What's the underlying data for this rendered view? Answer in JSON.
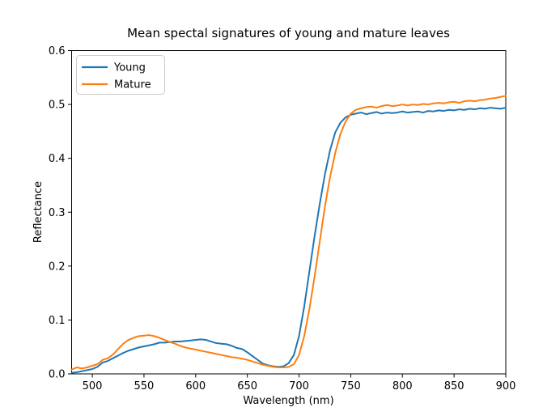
{
  "figure": {
    "title": "Mean spectal signatures of young and mature leaves",
    "xlabel": "Wavelength (nm)",
    "ylabel": "Reflectance"
  },
  "legend": {
    "position": "upper left",
    "entries": [
      {
        "label": "Young",
        "color": "#1f77b4"
      },
      {
        "label": "Mature",
        "color": "#ff7f0e"
      }
    ]
  },
  "chart_data": {
    "type": "line",
    "title": "Mean spectal signatures of young and mature leaves",
    "xlabel": "Wavelength (nm)",
    "ylabel": "Reflectance",
    "xlim": [
      480,
      900
    ],
    "ylim": [
      0.0,
      0.6
    ],
    "xticks": [
      "500",
      "550",
      "600",
      "650",
      "700",
      "750",
      "800",
      "850",
      "900"
    ],
    "xtick_values": [
      500,
      550,
      600,
      650,
      700,
      750,
      800,
      850,
      900
    ],
    "yticks": [
      "0.0",
      "0.1",
      "0.2",
      "0.3",
      "0.4",
      "0.5",
      "0.6"
    ],
    "ytick_values": [
      0.0,
      0.1,
      0.2,
      0.3,
      0.4,
      0.5,
      0.6
    ],
    "grid": false,
    "legend_position": "upper left",
    "x": [
      480,
      485,
      490,
      495,
      500,
      505,
      510,
      515,
      520,
      525,
      530,
      535,
      540,
      545,
      550,
      555,
      560,
      565,
      570,
      575,
      580,
      585,
      590,
      595,
      600,
      605,
      610,
      615,
      620,
      625,
      630,
      635,
      640,
      645,
      650,
      655,
      660,
      665,
      670,
      675,
      680,
      685,
      690,
      695,
      700,
      705,
      710,
      715,
      720,
      725,
      730,
      735,
      740,
      745,
      750,
      755,
      760,
      765,
      770,
      775,
      780,
      785,
      790,
      795,
      800,
      805,
      810,
      815,
      820,
      825,
      830,
      835,
      840,
      845,
      850,
      855,
      860,
      865,
      870,
      875,
      880,
      885,
      890,
      895,
      900
    ],
    "series": [
      {
        "name": "Young",
        "color": "#1f77b4",
        "values": [
          0.002,
          0.003,
          0.005,
          0.007,
          0.009,
          0.013,
          0.021,
          0.024,
          0.029,
          0.034,
          0.039,
          0.043,
          0.046,
          0.049,
          0.051,
          0.053,
          0.055,
          0.058,
          0.058,
          0.059,
          0.06,
          0.06,
          0.061,
          0.062,
          0.063,
          0.064,
          0.063,
          0.06,
          0.057,
          0.056,
          0.055,
          0.052,
          0.048,
          0.046,
          0.04,
          0.033,
          0.026,
          0.019,
          0.016,
          0.014,
          0.013,
          0.014,
          0.02,
          0.035,
          0.07,
          0.125,
          0.19,
          0.255,
          0.315,
          0.37,
          0.415,
          0.448,
          0.466,
          0.476,
          0.481,
          0.483,
          0.485,
          0.482,
          0.484,
          0.486,
          0.483,
          0.485,
          0.484,
          0.485,
          0.487,
          0.485,
          0.486,
          0.487,
          0.485,
          0.488,
          0.487,
          0.489,
          0.488,
          0.49,
          0.489,
          0.491,
          0.49,
          0.492,
          0.491,
          0.493,
          0.492,
          0.494,
          0.493,
          0.492,
          0.494
        ]
      },
      {
        "name": "Mature",
        "color": "#ff7f0e",
        "values": [
          0.008,
          0.012,
          0.01,
          0.012,
          0.015,
          0.018,
          0.026,
          0.029,
          0.036,
          0.046,
          0.056,
          0.063,
          0.067,
          0.07,
          0.071,
          0.072,
          0.07,
          0.067,
          0.063,
          0.059,
          0.056,
          0.052,
          0.049,
          0.047,
          0.045,
          0.043,
          0.041,
          0.039,
          0.037,
          0.035,
          0.033,
          0.031,
          0.03,
          0.028,
          0.026,
          0.023,
          0.02,
          0.017,
          0.015,
          0.013,
          0.012,
          0.012,
          0.013,
          0.018,
          0.035,
          0.07,
          0.12,
          0.18,
          0.245,
          0.31,
          0.365,
          0.41,
          0.445,
          0.468,
          0.483,
          0.49,
          0.493,
          0.495,
          0.496,
          0.494,
          0.497,
          0.499,
          0.497,
          0.498,
          0.5,
          0.498,
          0.5,
          0.499,
          0.501,
          0.5,
          0.502,
          0.503,
          0.502,
          0.504,
          0.505,
          0.503,
          0.506,
          0.507,
          0.506,
          0.508,
          0.509,
          0.511,
          0.512,
          0.514,
          0.516
        ]
      }
    ]
  }
}
